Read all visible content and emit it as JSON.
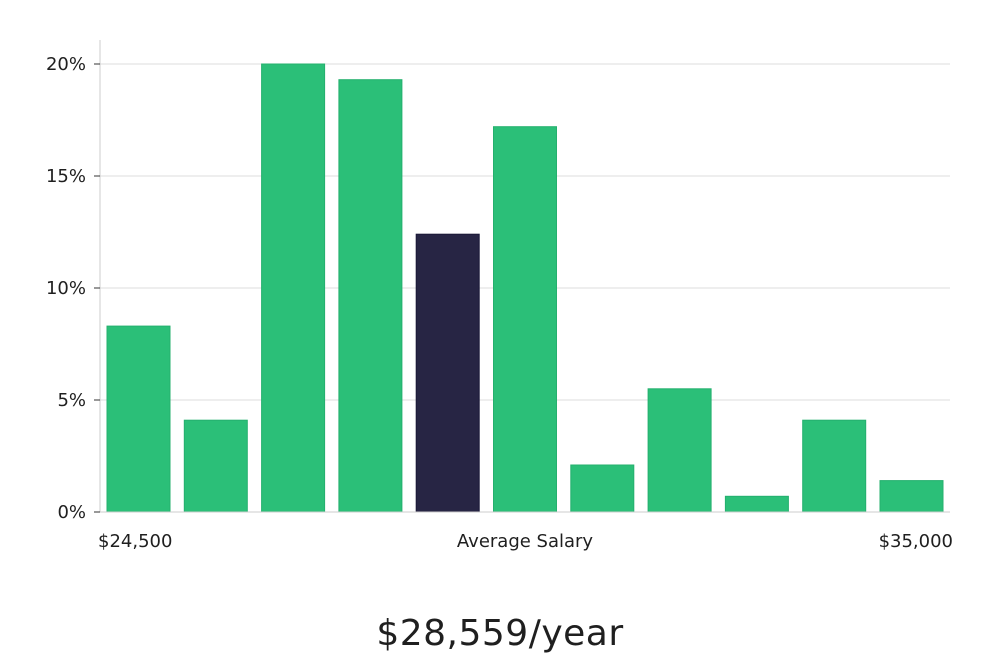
{
  "chart_data": {
    "type": "bar",
    "title": "",
    "xlabel": "Average Salary",
    "ylabel": "",
    "categories": [
      "$24,500",
      "",
      "",
      "",
      "",
      "",
      "",
      "",
      "",
      "",
      "$35,000"
    ],
    "values": [
      8.3,
      4.1,
      20.0,
      19.3,
      12.4,
      17.2,
      2.1,
      5.5,
      0.7,
      4.1,
      1.4
    ],
    "highlight_index": 4,
    "ylim": [
      0,
      21
    ],
    "yticks": [
      0,
      5,
      10,
      15,
      20
    ],
    "ytick_labels": [
      "0%",
      "5%",
      "10%",
      "15%",
      "20%"
    ],
    "x_range_labels": {
      "start": "$24,500",
      "middle": "Average Salary",
      "end": "$35,000"
    },
    "grid": true,
    "colors": {
      "bar": "#2bbf78",
      "highlight": "#272544",
      "grid": "#dddddd",
      "axis": "#cccccc"
    }
  },
  "summary": {
    "average_salary": "$28,559/year"
  }
}
